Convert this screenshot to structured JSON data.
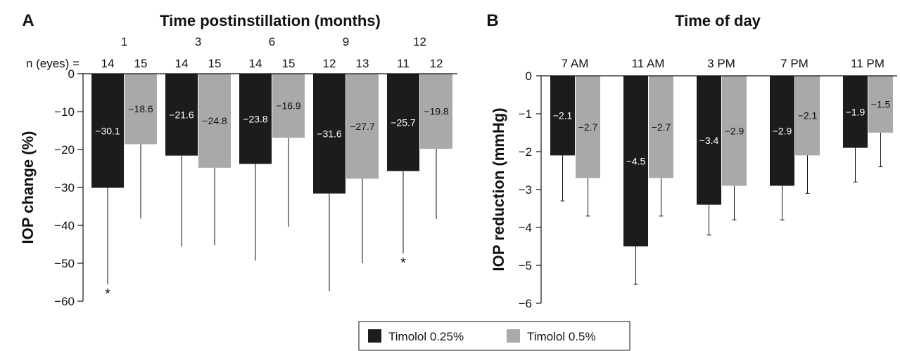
{
  "colors": {
    "series1": "#1c1c1c",
    "series2": "#a9a9a9",
    "label_on_dark": "#ffffff",
    "label_on_light": "#111111"
  },
  "legend": {
    "items": [
      "Timolol 0.25%",
      "Timolol 0.5%"
    ],
    "placement": "bottom-center"
  },
  "chart_data": [
    {
      "panel": "A",
      "type": "bar",
      "title": "Time postinstillation (months)",
      "ylabel": "IOP change (%)",
      "xlabel": "",
      "ylim": [
        -60,
        0
      ],
      "yticks": [
        0,
        -10,
        -20,
        -30,
        -40,
        -50,
        -60
      ],
      "ytick_labels": [
        "0",
        "−10",
        "−20",
        "−30",
        "−40",
        "−50",
        "−60"
      ],
      "categories": [
        "1",
        "3",
        "6",
        "9",
        "12"
      ],
      "n_label": "n (eyes) =",
      "n": [
        [
          14,
          15
        ],
        [
          14,
          15
        ],
        [
          14,
          15
        ],
        [
          12,
          13
        ],
        [
          11,
          12
        ]
      ],
      "series": [
        {
          "name": "Timolol 0.25%",
          "values": [
            -30.1,
            -21.6,
            -23.8,
            -31.6,
            -25.7
          ],
          "labels": [
            "−30.1",
            "−21.6",
            "−23.8",
            "−31.6",
            "−25.7"
          ],
          "error": [
            25.5,
            24.0,
            25.5,
            25.8,
            21.7
          ]
        },
        {
          "name": "Timolol 0.5%",
          "values": [
            -18.6,
            -24.8,
            -16.9,
            -27.7,
            -19.8
          ],
          "labels": [
            "−18.6",
            "−24.8",
            "−16.9",
            "−27.7",
            "−19.8"
          ],
          "error": [
            19.6,
            20.4,
            23.5,
            22.3,
            18.5
          ]
        }
      ],
      "annotations": [
        {
          "text": "*",
          "category": "1",
          "series": "Timolol 0.25%"
        },
        {
          "text": "*",
          "category": "12",
          "series": "Timolol 0.25%"
        }
      ]
    },
    {
      "panel": "B",
      "type": "bar",
      "title": "Time of day",
      "ylabel": "IOP reduction (mmHg)",
      "xlabel": "",
      "ylim": [
        -6,
        0
      ],
      "yticks": [
        0,
        -1,
        -2,
        -3,
        -4,
        -5,
        -6
      ],
      "ytick_labels": [
        "0",
        "−1",
        "−2",
        "−3",
        "−4",
        "−5",
        "−6"
      ],
      "categories": [
        "7 AM",
        "11 AM",
        "3 PM",
        "7 PM",
        "11 PM"
      ],
      "series": [
        {
          "name": "Timolol 0.25%",
          "values": [
            -2.1,
            -4.5,
            -3.4,
            -2.9,
            -1.9
          ],
          "labels": [
            "−2.1",
            "−4.5",
            "−3.4",
            "−2.9",
            "−1.9"
          ],
          "error": [
            1.2,
            1.0,
            0.8,
            0.9,
            0.9
          ]
        },
        {
          "name": "Timolol 0.5%",
          "values": [
            -2.7,
            -2.7,
            -2.9,
            -2.1,
            -1.5
          ],
          "labels": [
            "−2.7",
            "−2.7",
            "−2.9",
            "−2.1",
            "−1.5"
          ],
          "error": [
            1.0,
            1.0,
            0.9,
            1.0,
            0.9
          ]
        }
      ]
    }
  ]
}
